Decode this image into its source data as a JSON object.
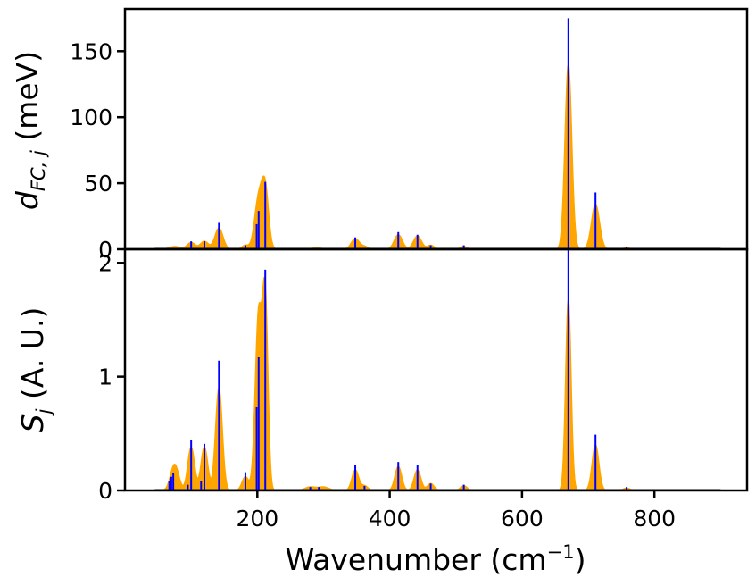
{
  "chart_data": [
    {
      "type": "line",
      "panel": "top",
      "ylabel": {
        "main": "d",
        "sub": "FC, j",
        "unit": " (meV)"
      },
      "xlim": [
        0,
        940
      ],
      "ylim": [
        0,
        182
      ],
      "yticks": [
        0,
        50,
        100,
        150
      ],
      "colors": {
        "broadened": "#ffa500",
        "sticks": "#0000ff"
      },
      "broadened_peaks": [
        {
          "x": 75,
          "y": 2,
          "width": 8
        },
        {
          "x": 100,
          "y": 5,
          "width": 6
        },
        {
          "x": 120,
          "y": 6,
          "width": 6
        },
        {
          "x": 142,
          "y": 16,
          "width": 6
        },
        {
          "x": 182,
          "y": 3,
          "width": 5
        },
        {
          "x": 202,
          "y": 38,
          "width": 6
        },
        {
          "x": 212,
          "y": 43,
          "width": 5
        },
        {
          "x": 290,
          "y": 1,
          "width": 8
        },
        {
          "x": 348,
          "y": 8,
          "width": 6
        },
        {
          "x": 362,
          "y": 2,
          "width": 5
        },
        {
          "x": 413,
          "y": 11,
          "width": 6
        },
        {
          "x": 442,
          "y": 10,
          "width": 6
        },
        {
          "x": 462,
          "y": 3,
          "width": 5
        },
        {
          "x": 512,
          "y": 2,
          "width": 5
        },
        {
          "x": 670,
          "y": 140,
          "width": 5
        },
        {
          "x": 711,
          "y": 34,
          "width": 6
        },
        {
          "x": 758,
          "y": 1,
          "width": 5
        }
      ],
      "sticks": [
        {
          "x": 100,
          "y": 6
        },
        {
          "x": 120,
          "y": 6
        },
        {
          "x": 142,
          "y": 20
        },
        {
          "x": 182,
          "y": 3
        },
        {
          "x": 199,
          "y": 19
        },
        {
          "x": 202,
          "y": 29
        },
        {
          "x": 212,
          "y": 51
        },
        {
          "x": 348,
          "y": 9
        },
        {
          "x": 413,
          "y": 13
        },
        {
          "x": 442,
          "y": 11
        },
        {
          "x": 462,
          "y": 3
        },
        {
          "x": 512,
          "y": 3
        },
        {
          "x": 670,
          "y": 175
        },
        {
          "x": 711,
          "y": 43
        },
        {
          "x": 758,
          "y": 2
        }
      ]
    },
    {
      "type": "line",
      "panel": "bottom",
      "xlabel": {
        "main": "Wavenumber (cm",
        "sup": "−1",
        "tail": ")"
      },
      "ylabel": {
        "main": "S",
        "sub": "j",
        "unit": " (A. U.)"
      },
      "xlim": [
        0,
        940
      ],
      "ylim": [
        0,
        2.12
      ],
      "yticks": [
        0,
        1,
        2
      ],
      "xticks": [
        200,
        400,
        600,
        800
      ],
      "colors": {
        "broadened": "#ffa500",
        "sticks": "#0000ff"
      },
      "broadened_peaks": [
        {
          "x": 75,
          "y": 0.23,
          "width": 6
        },
        {
          "x": 100,
          "y": 0.38,
          "width": 5
        },
        {
          "x": 120,
          "y": 0.38,
          "width": 5
        },
        {
          "x": 142,
          "y": 0.9,
          "width": 5
        },
        {
          "x": 182,
          "y": 0.12,
          "width": 5
        },
        {
          "x": 202,
          "y": 1.55,
          "width": 5
        },
        {
          "x": 212,
          "y": 1.62,
          "width": 4
        },
        {
          "x": 280,
          "y": 0.03,
          "width": 8
        },
        {
          "x": 300,
          "y": 0.03,
          "width": 8
        },
        {
          "x": 348,
          "y": 0.18,
          "width": 5
        },
        {
          "x": 362,
          "y": 0.04,
          "width": 5
        },
        {
          "x": 413,
          "y": 0.21,
          "width": 5
        },
        {
          "x": 442,
          "y": 0.18,
          "width": 5
        },
        {
          "x": 462,
          "y": 0.06,
          "width": 5
        },
        {
          "x": 512,
          "y": 0.04,
          "width": 5
        },
        {
          "x": 670,
          "y": 1.68,
          "width": 4
        },
        {
          "x": 711,
          "y": 0.4,
          "width": 5
        },
        {
          "x": 758,
          "y": 0.02,
          "width": 5
        }
      ],
      "sticks": [
        {
          "x": 67,
          "y": 0.08
        },
        {
          "x": 70,
          "y": 0.12
        },
        {
          "x": 73,
          "y": 0.15
        },
        {
          "x": 95,
          "y": 0.05
        },
        {
          "x": 100,
          "y": 0.44
        },
        {
          "x": 115,
          "y": 0.08
        },
        {
          "x": 120,
          "y": 0.41
        },
        {
          "x": 142,
          "y": 1.14
        },
        {
          "x": 182,
          "y": 0.16
        },
        {
          "x": 199,
          "y": 0.73
        },
        {
          "x": 202,
          "y": 1.17
        },
        {
          "x": 212,
          "y": 1.94
        },
        {
          "x": 280,
          "y": 0.03
        },
        {
          "x": 293,
          "y": 0.03
        },
        {
          "x": 348,
          "y": 0.22
        },
        {
          "x": 362,
          "y": 0.04
        },
        {
          "x": 413,
          "y": 0.25
        },
        {
          "x": 442,
          "y": 0.22
        },
        {
          "x": 462,
          "y": 0.06
        },
        {
          "x": 512,
          "y": 0.05
        },
        {
          "x": 670,
          "y": 2.22
        },
        {
          "x": 711,
          "y": 0.49
        },
        {
          "x": 758,
          "y": 0.03
        }
      ]
    }
  ],
  "x_range": [
    45,
    900
  ]
}
